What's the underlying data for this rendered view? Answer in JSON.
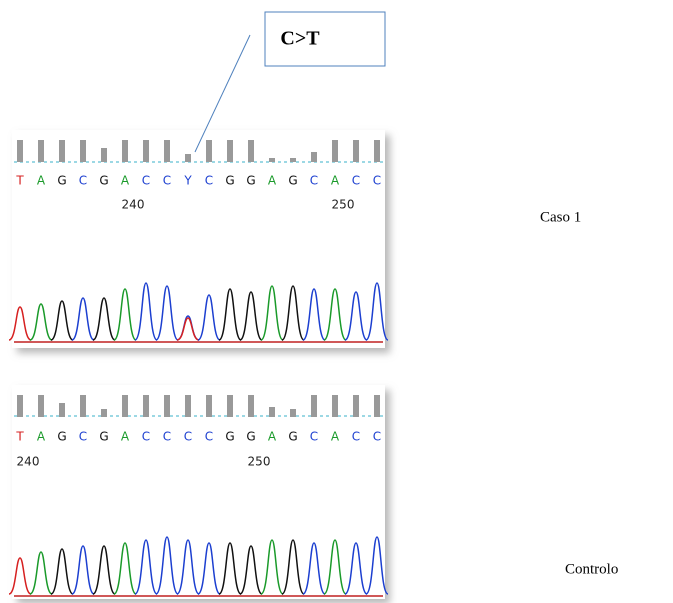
{
  "annotation": "C>T",
  "panels": [
    {
      "label": "Caso 1",
      "bases": [
        "T",
        "A",
        "G",
        "C",
        "G",
        "A",
        "C",
        "C",
        "Y",
        "C",
        "G",
        "G",
        "A",
        "G",
        "C",
        "A",
        "C",
        "C"
      ],
      "positions": [
        "240",
        "250"
      ]
    },
    {
      "label": "Controlo",
      "bases": [
        "T",
        "A",
        "G",
        "C",
        "G",
        "A",
        "C",
        "C",
        "C",
        "C",
        "G",
        "G",
        "A",
        "G",
        "C",
        "A",
        "C",
        "C"
      ],
      "positions": [
        "240",
        "250"
      ]
    }
  ]
}
